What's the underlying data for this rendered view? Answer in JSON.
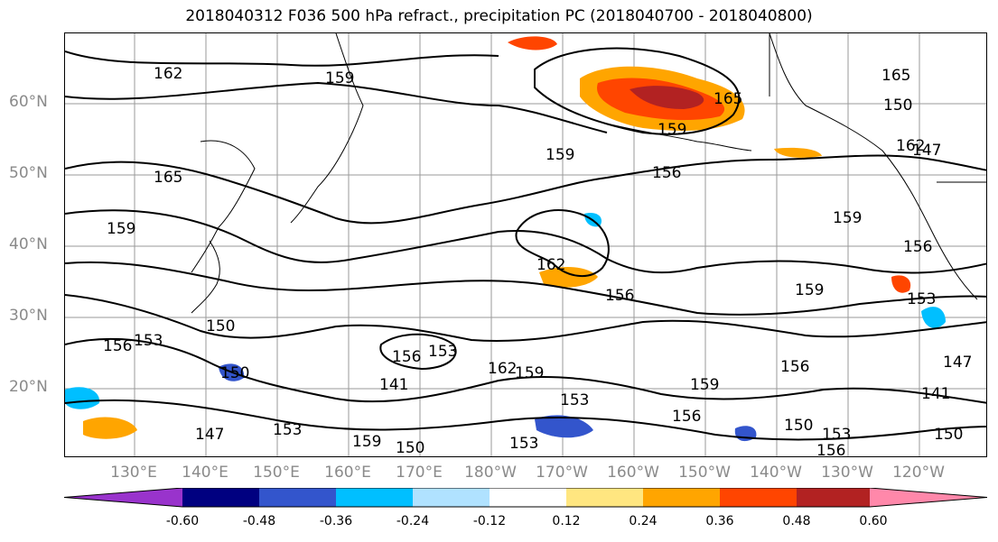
{
  "title": "2018040312 F036 500 hPa refract., precipitation PC (2018040700 - 2018040800)",
  "lat_labels": [
    "60°N",
    "50°N",
    "40°N",
    "30°N",
    "20°N"
  ],
  "lon_labels": [
    "130°E",
    "140°E",
    "150°E",
    "160°E",
    "170°E",
    "180°W",
    "170°W",
    "160°W",
    "150°W",
    "140°W",
    "130°W",
    "120°W"
  ],
  "contour_labels": [
    "162",
    "159",
    "165",
    "165",
    "159",
    "162",
    "165",
    "159",
    "159",
    "156",
    "159",
    "156",
    "162",
    "156",
    "159",
    "153",
    "150",
    "153",
    "156",
    "150",
    "156",
    "153",
    "141",
    "162",
    "159",
    "153",
    "159",
    "156",
    "150",
    "156",
    "153",
    "147",
    "153",
    "159",
    "150",
    "153",
    "156",
    "150",
    "147",
    "141",
    "147",
    "150"
  ],
  "colorbar": {
    "colors": [
      "#9933cc",
      "#000080",
      "#3355cc",
      "#00bfff",
      "#b0e2ff",
      "#ffffff",
      "#ffe680",
      "#ffa500",
      "#ff4500",
      "#b22222",
      "#ff88aa"
    ],
    "ticks": [
      "-0.60",
      "-0.48",
      "-0.36",
      "-0.24",
      "-0.12",
      "0.12",
      "0.24",
      "0.36",
      "0.48",
      "0.60"
    ]
  }
}
